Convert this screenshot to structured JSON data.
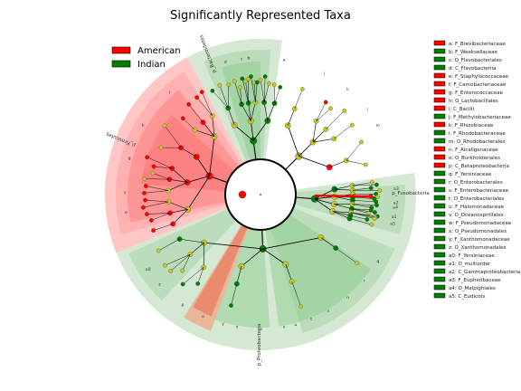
{
  "chart_data": {
    "type": "cladogram",
    "title": "Significantly Represented Taxa",
    "colors": {
      "American": "#ff0000",
      "Indian": "#008000",
      "American_light": "#ffc0c0",
      "Indian_light": "#cfe6cf",
      "neutral_node": "#c8c820"
    },
    "legend": [
      {
        "name": "American",
        "color": "#ff0000"
      },
      {
        "name": "Indian",
        "color": "#008000"
      }
    ],
    "ring_labels": [
      {
        "text": "p_Bacteroidetes",
        "group": "Indian"
      },
      {
        "text": "p_Firmicutes",
        "group": "American"
      },
      {
        "text": "p_Proteobacteria",
        "group": "Indian"
      },
      {
        "text": "p_Fusobacteria",
        "group": "Indian"
      }
    ],
    "taxa_key": [
      {
        "code": "a",
        "taxon": "F_Brevibacteriaceae",
        "group": "American"
      },
      {
        "code": "b",
        "taxon": "F_Weeksellaceae",
        "group": "Indian"
      },
      {
        "code": "c",
        "taxon": "O_Flavobacteriales",
        "group": "Indian"
      },
      {
        "code": "d",
        "taxon": "C_Flavobacteriia",
        "group": "Indian"
      },
      {
        "code": "e",
        "taxon": "F_Staphylococcaceae",
        "group": "American"
      },
      {
        "code": "f",
        "taxon": "F_Carnobacteriaceae",
        "group": "American"
      },
      {
        "code": "g",
        "taxon": "F_Enterococcaceae",
        "group": "American"
      },
      {
        "code": "h",
        "taxon": "O_Lactobacillales",
        "group": "American"
      },
      {
        "code": "i",
        "taxon": "C_Bacilli",
        "group": "American"
      },
      {
        "code": "j",
        "taxon": "F_Methylobacteriaceae",
        "group": "Indian"
      },
      {
        "code": "k",
        "taxon": "F_Rhizobiaceae",
        "group": "American"
      },
      {
        "code": "l",
        "taxon": "F_Rhodobacteraceae",
        "group": "Indian"
      },
      {
        "code": "m",
        "taxon": "O_Rhodobacterales",
        "group": "Indian"
      },
      {
        "code": "n",
        "taxon": "F_Alcaligenaceae",
        "group": "American"
      },
      {
        "code": "o",
        "taxon": "O_Burkholderiales",
        "group": "American"
      },
      {
        "code": "p",
        "taxon": "C_Betaproteobacteria",
        "group": "American"
      },
      {
        "code": "q",
        "taxon": "F_Yersiniaceae",
        "group": "Indian"
      },
      {
        "code": "r",
        "taxon": "O_Enterobacterales",
        "group": "Indian"
      },
      {
        "code": "s",
        "taxon": "F_Enterobacteriaceae",
        "group": "Indian"
      },
      {
        "code": "t",
        "taxon": "O_Enterobacteriales",
        "group": "Indian"
      },
      {
        "code": "u",
        "taxon": "F_Halomonadaceae",
        "group": "Indian"
      },
      {
        "code": "v",
        "taxon": "O_Oceanospirillales",
        "group": "Indian"
      },
      {
        "code": "w",
        "taxon": "F_Pseudomonadaceae",
        "group": "Indian"
      },
      {
        "code": "x",
        "taxon": "O_Pseudomonadales",
        "group": "Indian"
      },
      {
        "code": "y",
        "taxon": "F_Xanthomonadaceae",
        "group": "Indian"
      },
      {
        "code": "z",
        "taxon": "O_Xanthomonadales",
        "group": "Indian"
      },
      {
        "code": "a0",
        "taxon": "F_Yersiniaceae",
        "group": "Indian"
      },
      {
        "code": "a1",
        "taxon": "O_multiorder",
        "group": "Indian"
      },
      {
        "code": "a2",
        "taxon": "C_Gammaproteobacteria",
        "group": "Indian"
      },
      {
        "code": "a3",
        "taxon": "F_Eupheribaceae",
        "group": "Indian"
      },
      {
        "code": "a4",
        "taxon": "O_Malpighiales",
        "group": "Indian"
      },
      {
        "code": "a5",
        "taxon": "C_Eudicots",
        "group": "Indian"
      }
    ],
    "clade_letters": [
      "d",
      "c",
      "b",
      "a",
      "e",
      "f",
      "g",
      "h",
      "i",
      "j",
      "k",
      "l",
      "m",
      "n",
      "o",
      "p",
      "q",
      "r",
      "s",
      "t",
      "u",
      "v",
      "w",
      "x",
      "y",
      "z",
      "a0",
      "a1",
      "a2",
      "a3",
      "a4",
      "a5"
    ]
  }
}
